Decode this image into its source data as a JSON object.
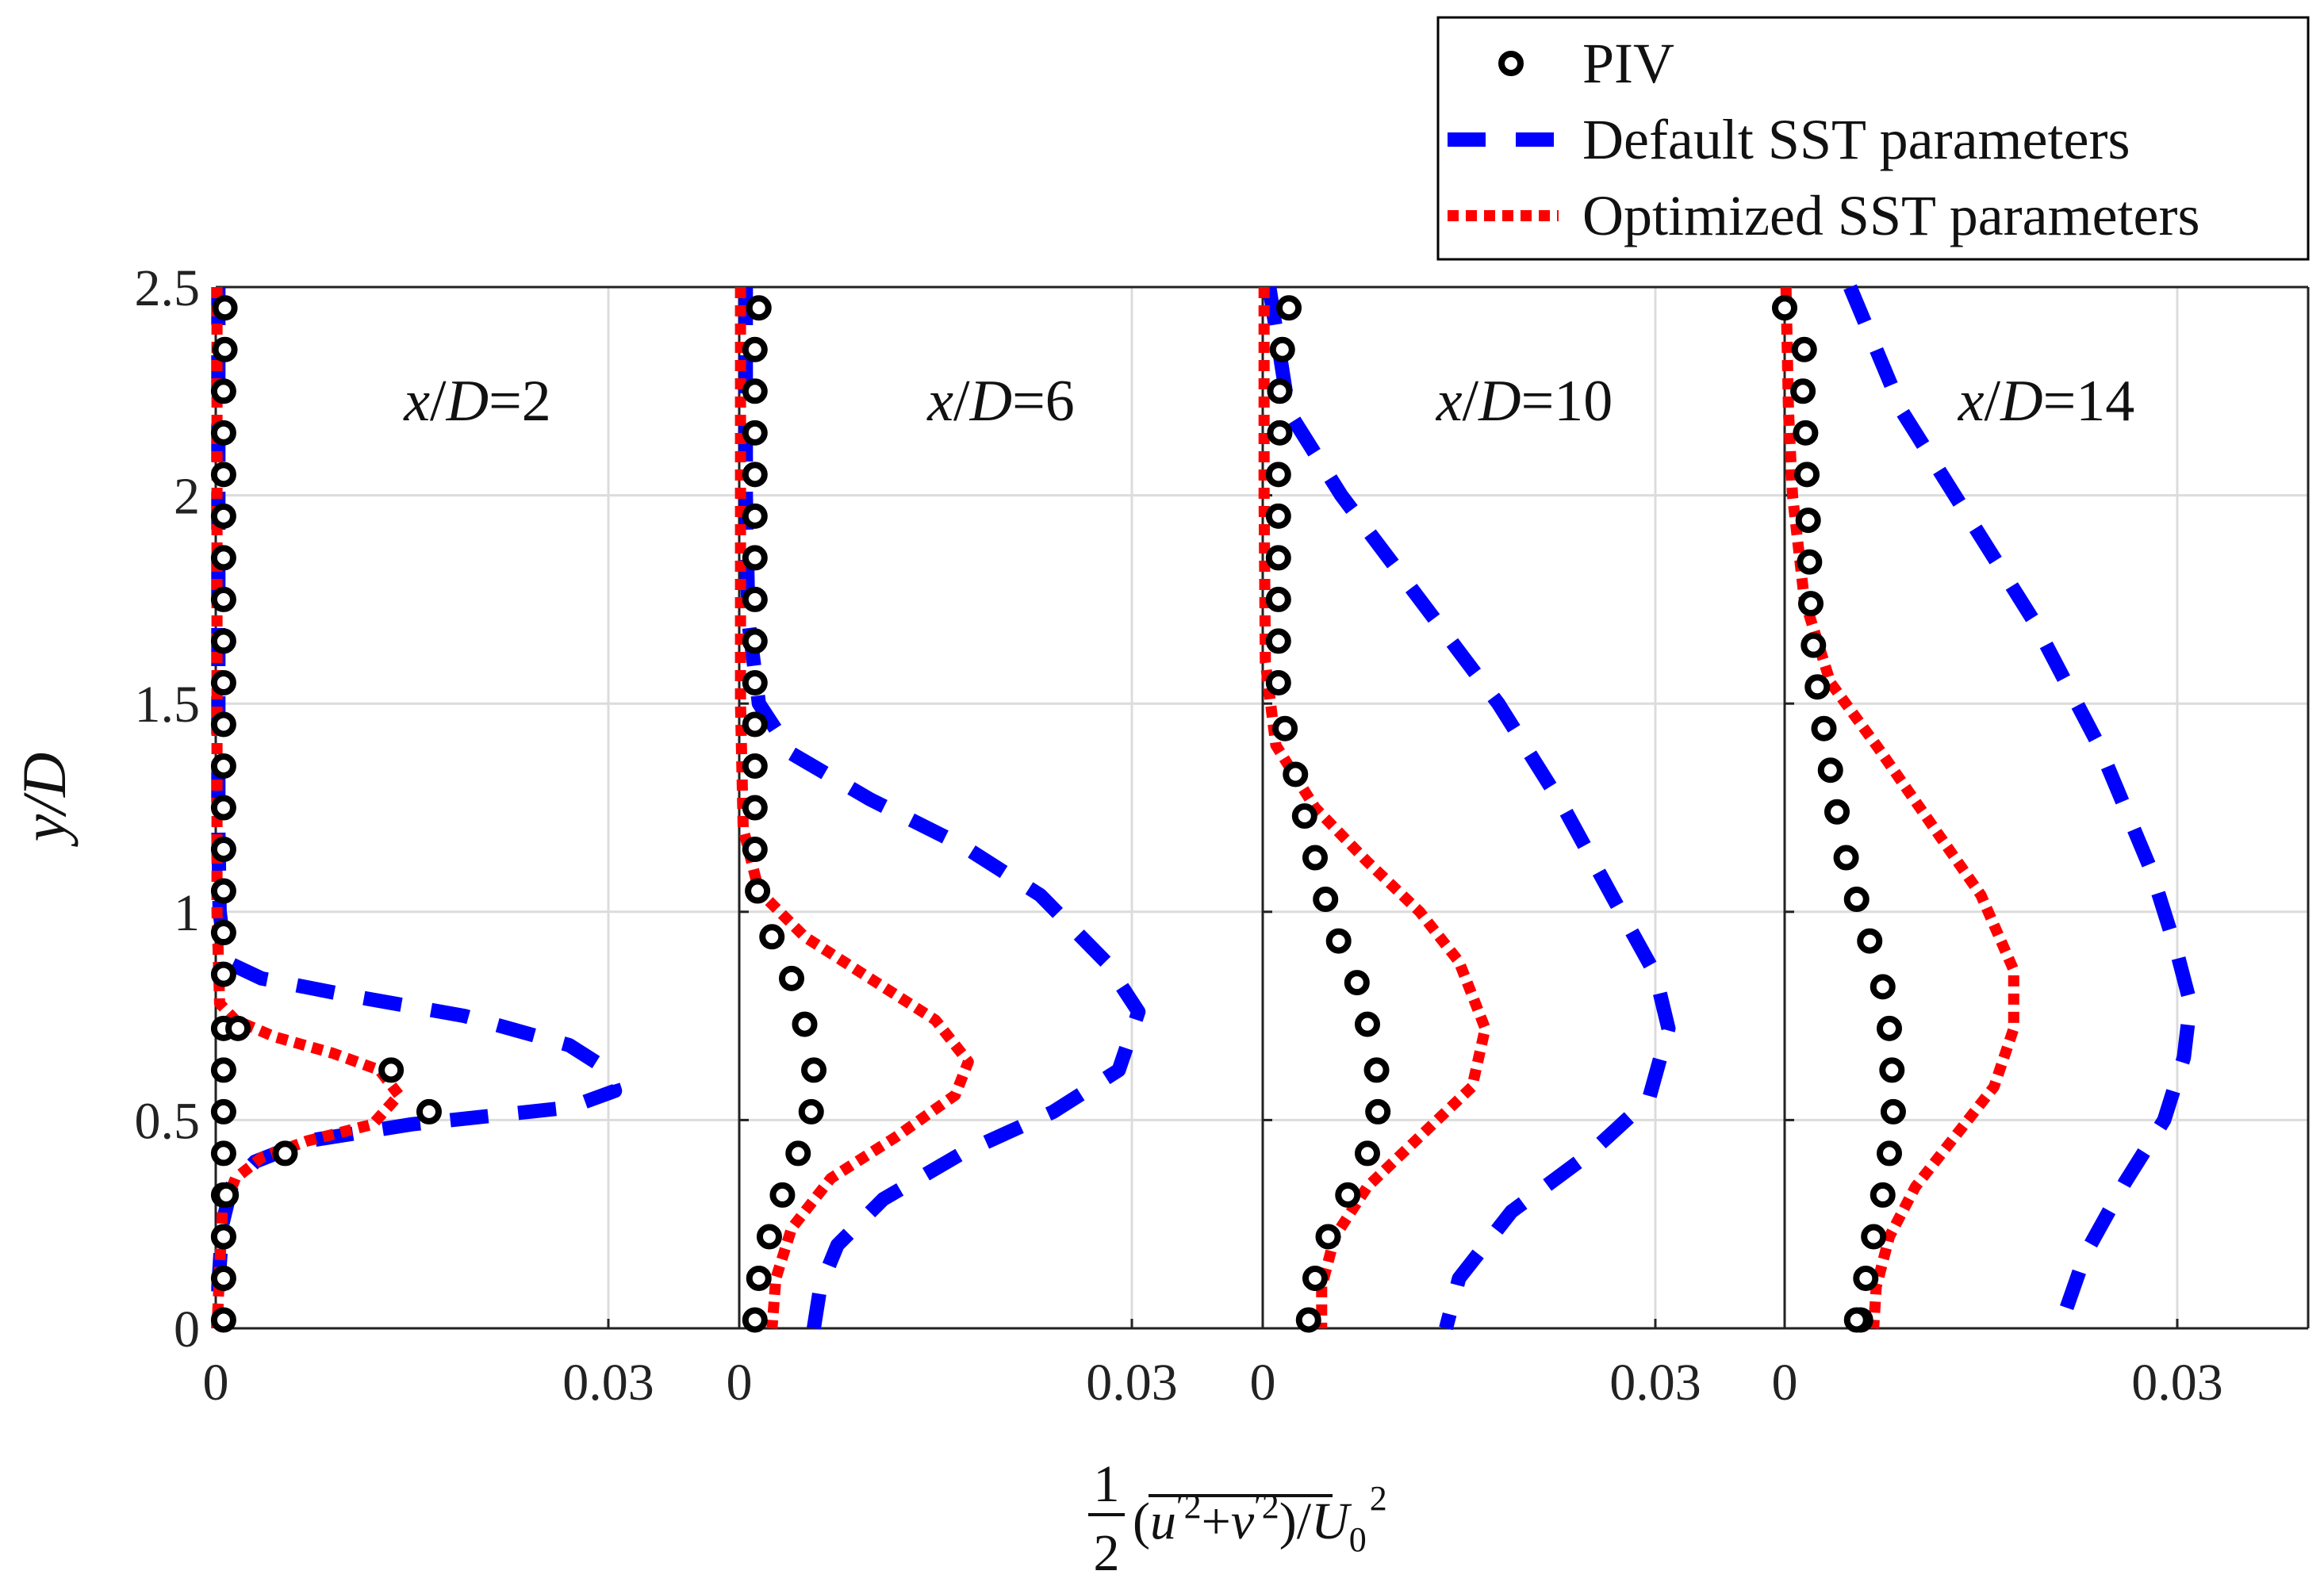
{
  "chart_data": {
    "type": "line",
    "ylabel": "y/D",
    "xlabel": {
      "fraction_num": "1",
      "fraction_den": "2",
      "body_open": "(",
      "u": "u",
      "prime_sq_u": "′2",
      "plus": "+",
      "v": "v",
      "prime_sq_v": "′2",
      "body_close": ")/",
      "U": "U",
      "sub": "0",
      "sup": "2"
    },
    "ylim": [
      0,
      2.5
    ],
    "xlim": [
      0,
      0.04
    ],
    "y_ticks": [
      "0",
      "0.5",
      "1",
      "1.5",
      "2",
      "2.5"
    ],
    "y_tick_values": [
      0,
      0.5,
      1,
      1.5,
      2,
      2.5
    ],
    "x_ticks": [
      "0",
      "0.03"
    ],
    "x_tick_values": [
      0,
      0.03
    ],
    "grid": true,
    "legend": {
      "placement": "top-right",
      "entries": [
        {
          "name": "PIV",
          "style": "open-circle",
          "color": "#000000"
        },
        {
          "name": "Default SST parameters",
          "style": "dashed",
          "color": "#0000ff"
        },
        {
          "name": "Optimized SST parameters",
          "style": "dotted",
          "color": "#ff0000"
        }
      ]
    },
    "panels": [
      {
        "label_var_x": "x",
        "label_var_d": "D",
        "label_eq": "=2",
        "series": [
          {
            "name": "PIV",
            "x": [
              0.0007,
              0.0007,
              0.0006,
              0.0006,
              0.0006,
              0.0006,
              0.0006,
              0.0006,
              0.0006,
              0.0006,
              0.0006,
              0.0006,
              0.0006,
              0.0006,
              0.0006,
              0.0006,
              0.0006,
              0.0006,
              0.0006,
              0.0006,
              0.0006,
              0.0006,
              0.0006,
              0.0017,
              0.0134,
              0.0163,
              0.0053,
              0.0008,
              0.0006,
              0.0006,
              0.0006
            ],
            "y": [
              2.45,
              2.35,
              2.25,
              2.15,
              2.05,
              1.95,
              1.85,
              1.75,
              1.65,
              1.55,
              1.45,
              1.35,
              1.25,
              1.15,
              1.05,
              0.95,
              0.85,
              0.72,
              0.62,
              0.52,
              0.42,
              0.32,
              0.22,
              0.72,
              0.62,
              0.52,
              0.42,
              0.32,
              0.22,
              0.12,
              0.02
            ]
          },
          {
            "name": "Default SST parameters",
            "x": [
              0.0002,
              0.0002,
              0.0002,
              0.0002,
              0.0003,
              0.0008,
              0.0035,
              0.01,
              0.019,
              0.027,
              0.03,
              0.0305,
              0.027,
              0.015,
              0.007,
              0.003,
              0.0012,
              0.0005,
              0.0002,
              0.0002
            ],
            "y": [
              2.5,
              2.0,
              1.5,
              1.2,
              1.0,
              0.88,
              0.84,
              0.8,
              0.75,
              0.68,
              0.62,
              0.57,
              0.53,
              0.49,
              0.45,
              0.4,
              0.34,
              0.25,
              0.1,
              0.0
            ]
          },
          {
            "name": "Optimized SST parameters",
            "x": [
              0.0001,
              0.0001,
              0.0001,
              0.0001,
              0.0003,
              0.0015,
              0.0045,
              0.009,
              0.0125,
              0.014,
              0.012,
              0.007,
              0.0035,
              0.0015,
              0.0005,
              0.0001
            ],
            "y": [
              2.5,
              2.0,
              1.5,
              1.0,
              0.78,
              0.74,
              0.7,
              0.66,
              0.62,
              0.56,
              0.49,
              0.45,
              0.41,
              0.36,
              0.28,
              0.0
            ]
          }
        ]
      },
      {
        "label_var_x": "x",
        "label_var_d": "D",
        "label_eq": "=6",
        "series": [
          {
            "name": "PIV",
            "x": [
              0.0015,
              0.0012,
              0.0012,
              0.0012,
              0.0012,
              0.0012,
              0.0012,
              0.0012,
              0.0012,
              0.0012,
              0.0012,
              0.0012,
              0.0012,
              0.0012,
              0.0014,
              0.0025,
              0.004,
              0.005,
              0.0057,
              0.0055,
              0.0045,
              0.0033,
              0.0023,
              0.0015,
              0.0012
            ],
            "y": [
              2.45,
              2.35,
              2.25,
              2.15,
              2.05,
              1.95,
              1.85,
              1.75,
              1.65,
              1.55,
              1.45,
              1.35,
              1.25,
              1.15,
              1.05,
              0.94,
              0.84,
              0.73,
              0.62,
              0.52,
              0.42,
              0.32,
              0.22,
              0.12,
              0.02
            ]
          },
          {
            "name": "Default SST parameters",
            "x": [
              0.0005,
              0.0005,
              0.0007,
              0.0015,
              0.004,
              0.01,
              0.017,
              0.023,
              0.028,
              0.0305,
              0.029,
              0.024,
              0.017,
              0.011,
              0.0075,
              0.0062,
              0.0057
            ],
            "y": [
              2.5,
              2.0,
              1.7,
              1.5,
              1.38,
              1.27,
              1.16,
              1.04,
              0.88,
              0.76,
              0.62,
              0.52,
              0.42,
              0.31,
              0.2,
              0.1,
              0.0
            ]
          },
          {
            "name": "Optimized SST parameters",
            "x": [
              0.0001,
              0.0001,
              0.0001,
              0.0003,
              0.0015,
              0.005,
              0.01,
              0.015,
              0.0175,
              0.0165,
              0.012,
              0.007,
              0.004,
              0.0028,
              0.0025
            ],
            "y": [
              2.5,
              2.0,
              1.5,
              1.2,
              1.05,
              0.94,
              0.84,
              0.74,
              0.64,
              0.56,
              0.46,
              0.36,
              0.24,
              0.12,
              0.0
            ]
          }
        ]
      },
      {
        "label_var_x": "x",
        "label_var_d": "D",
        "label_eq": "=10",
        "series": [
          {
            "name": "PIV",
            "x": [
              0.002,
              0.0015,
              0.0013,
              0.0013,
              0.0012,
              0.0012,
              0.0012,
              0.0012,
              0.0012,
              0.0012,
              0.0017,
              0.0025,
              0.0032,
              0.004,
              0.0048,
              0.0058,
              0.0072,
              0.008,
              0.0087,
              0.0088,
              0.008,
              0.0065,
              0.005,
              0.004,
              0.0035
            ],
            "y": [
              2.45,
              2.35,
              2.25,
              2.15,
              2.05,
              1.95,
              1.85,
              1.75,
              1.65,
              1.55,
              1.44,
              1.33,
              1.23,
              1.13,
              1.03,
              0.93,
              0.83,
              0.73,
              0.62,
              0.52,
              0.42,
              0.32,
              0.22,
              0.12,
              0.02
            ]
          },
          {
            "name": "Default SST parameters",
            "x": [
              0.0005,
              0.002,
              0.006,
              0.012,
              0.018,
              0.023,
              0.027,
              0.03,
              0.031,
              0.0295,
              0.025,
              0.019,
              0.015,
              0.014
            ],
            "y": [
              2.5,
              2.2,
              2.0,
              1.75,
              1.5,
              1.25,
              1.02,
              0.85,
              0.72,
              0.55,
              0.42,
              0.28,
              0.12,
              0.0
            ]
          },
          {
            "name": "Optimized SST parameters",
            "x": [
              0.0001,
              0.0001,
              0.0002,
              0.001,
              0.004,
              0.008,
              0.012,
              0.015,
              0.017,
              0.016,
              0.012,
              0.008,
              0.0055,
              0.0045,
              0.0045
            ],
            "y": [
              2.5,
              2.0,
              1.6,
              1.4,
              1.25,
              1.12,
              1.0,
              0.88,
              0.72,
              0.58,
              0.46,
              0.34,
              0.22,
              0.1,
              0.0
            ]
          }
        ]
      },
      {
        "label_var_x": "x",
        "label_var_d": "D",
        "label_eq": "=14",
        "series": [
          {
            "name": "PIV",
            "x": [
              0.0,
              0.0015,
              0.0014,
              0.0016,
              0.0017,
              0.0018,
              0.0019,
              0.002,
              0.0022,
              0.0025,
              0.003,
              0.0035,
              0.004,
              0.0047,
              0.0055,
              0.0065,
              0.0075,
              0.008,
              0.0082,
              0.0083,
              0.008,
              0.0075,
              0.0068,
              0.0062,
              0.0058,
              0.0055
            ],
            "y": [
              2.45,
              2.35,
              2.25,
              2.15,
              2.05,
              1.94,
              1.84,
              1.74,
              1.64,
              1.54,
              1.44,
              1.34,
              1.24,
              1.13,
              1.03,
              0.93,
              0.82,
              0.72,
              0.62,
              0.52,
              0.42,
              0.32,
              0.22,
              0.12,
              0.02,
              0.02
            ]
          },
          {
            "name": "Default SST parameters",
            "x": [
              0.005,
              0.009,
              0.014,
              0.019,
              0.024,
              0.028,
              0.03,
              0.031,
              0.0305,
              0.029,
              0.026,
              0.023,
              0.021
            ],
            "y": [
              2.5,
              2.2,
              1.95,
              1.7,
              1.4,
              1.1,
              0.9,
              0.78,
              0.65,
              0.5,
              0.35,
              0.18,
              0.0
            ]
          },
          {
            "name": "Optimized SST parameters",
            "x": [
              0.0001,
              0.0003,
              0.0006,
              0.0015,
              0.0035,
              0.007,
              0.011,
              0.015,
              0.0175,
              0.0175,
              0.016,
              0.013,
              0.01,
              0.008,
              0.007,
              0.0068
            ],
            "y": [
              2.5,
              2.2,
              2.0,
              1.75,
              1.55,
              1.4,
              1.22,
              1.04,
              0.86,
              0.72,
              0.58,
              0.46,
              0.34,
              0.22,
              0.1,
              0.0
            ]
          }
        ]
      }
    ]
  }
}
